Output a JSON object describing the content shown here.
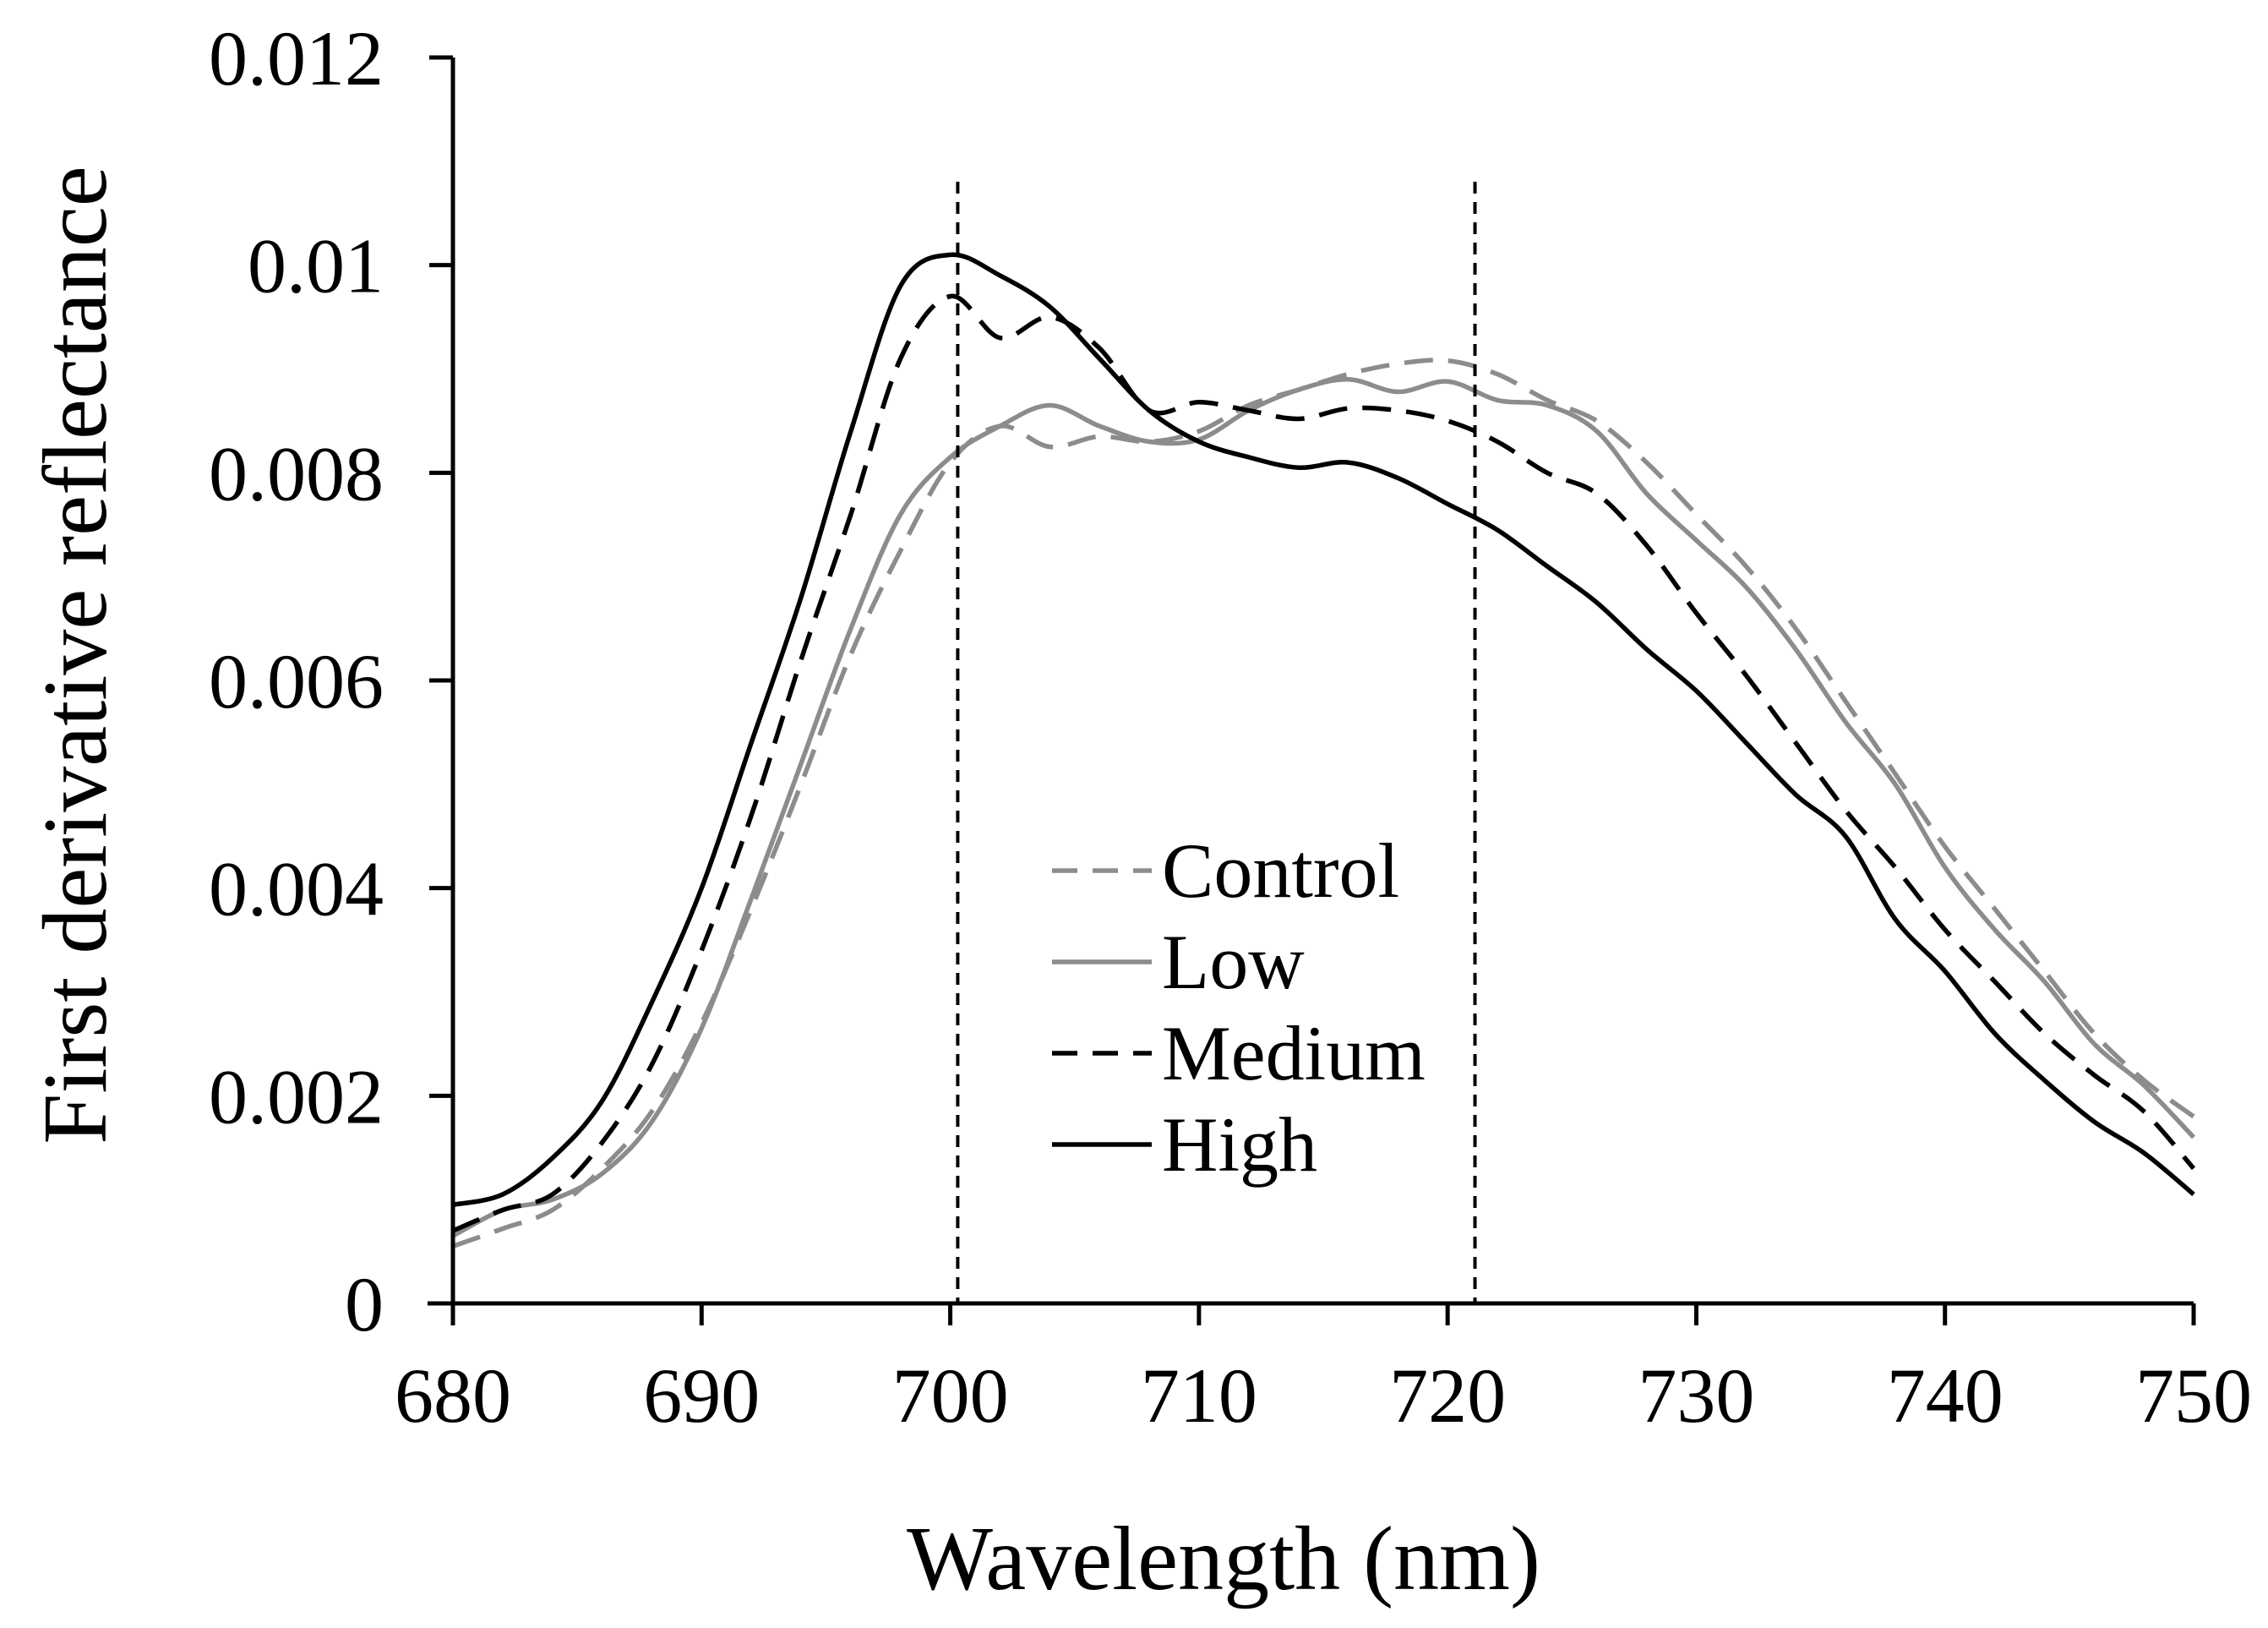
{
  "chart_data": {
    "type": "line",
    "xlabel": "Wavelength (nm)",
    "ylabel": "First derivative reflectance",
    "xlim": [
      680,
      750
    ],
    "ylim": [
      0,
      0.012
    ],
    "x_ticks": [
      "680",
      "690",
      "700",
      "710",
      "720",
      "730",
      "740",
      "750"
    ],
    "y_ticks": [
      "0",
      "0.002",
      "0.004",
      "0.006",
      "0.008",
      "0.01",
      "0.012"
    ],
    "x_tick_values": [
      680,
      690,
      700,
      710,
      720,
      730,
      740,
      750
    ],
    "y_tick_values": [
      0,
      0.002,
      0.004,
      0.006,
      0.008,
      0.01,
      0.012
    ],
    "grid": false,
    "legend_position": "center",
    "reference_lines": [
      {
        "x": 700.3
      },
      {
        "x": 721.1
      }
    ],
    "x": [
      680,
      682,
      684,
      686,
      688,
      690,
      692,
      694,
      696,
      698,
      700,
      702,
      704,
      706,
      708,
      710,
      712,
      714,
      716,
      718,
      720,
      722,
      724,
      726,
      728,
      730,
      732,
      734,
      736,
      738,
      740,
      742,
      744,
      746,
      748,
      750
    ],
    "series": [
      {
        "name": "Control",
        "color": "#8c8c8c",
        "dash": "dashed",
        "values": [
          0.00055,
          0.00072,
          0.0009,
          0.0013,
          0.00185,
          0.0027,
          0.0038,
          0.005,
          0.00625,
          0.00725,
          0.0081,
          0.00845,
          0.00825,
          0.00835,
          0.0083,
          0.0084,
          0.00865,
          0.0088,
          0.00895,
          0.00905,
          0.00908,
          0.00895,
          0.0087,
          0.0085,
          0.0081,
          0.0076,
          0.0071,
          0.0065,
          0.0058,
          0.0051,
          0.0044,
          0.0038,
          0.0032,
          0.0026,
          0.00215,
          0.0018
        ]
      },
      {
        "name": "Low",
        "color": "#8c8c8c",
        "dash": "solid",
        "values": [
          0.00065,
          0.0009,
          0.001,
          0.00125,
          0.00175,
          0.00265,
          0.0039,
          0.0052,
          0.0065,
          0.0076,
          0.00815,
          0.00845,
          0.00865,
          0.00845,
          0.0083,
          0.00832,
          0.0086,
          0.0088,
          0.0089,
          0.00878,
          0.00888,
          0.0087,
          0.00865,
          0.0084,
          0.0078,
          0.00735,
          0.0069,
          0.0063,
          0.0056,
          0.005,
          0.0042,
          0.0036,
          0.0031,
          0.0025,
          0.0021,
          0.0016
        ]
      },
      {
        "name": "Medium",
        "color": "#000000",
        "dash": "dashed",
        "values": [
          0.0007,
          0.0009,
          0.00105,
          0.00155,
          0.0023,
          0.0034,
          0.0047,
          0.0062,
          0.0076,
          0.0091,
          0.0097,
          0.0093,
          0.0095,
          0.0092,
          0.0086,
          0.00868,
          0.0086,
          0.00852,
          0.00862,
          0.0086,
          0.0085,
          0.0083,
          0.008,
          0.0078,
          0.0073,
          0.00665,
          0.00605,
          0.0054,
          0.00475,
          0.0042,
          0.0036,
          0.0031,
          0.0026,
          0.0022,
          0.00185,
          0.0013
        ]
      },
      {
        "name": "High",
        "color": "#000000",
        "dash": "solid",
        "values": [
          0.00095,
          0.00105,
          0.0014,
          0.00195,
          0.0029,
          0.004,
          0.0054,
          0.0068,
          0.0084,
          0.0098,
          0.0101,
          0.0099,
          0.0096,
          0.0091,
          0.0086,
          0.0083,
          0.00815,
          0.00805,
          0.0081,
          0.00795,
          0.0077,
          0.00745,
          0.0071,
          0.00675,
          0.0063,
          0.0059,
          0.0054,
          0.0049,
          0.0045,
          0.0037,
          0.0032,
          0.0026,
          0.00215,
          0.00175,
          0.00145,
          0.00105
        ]
      }
    ]
  }
}
